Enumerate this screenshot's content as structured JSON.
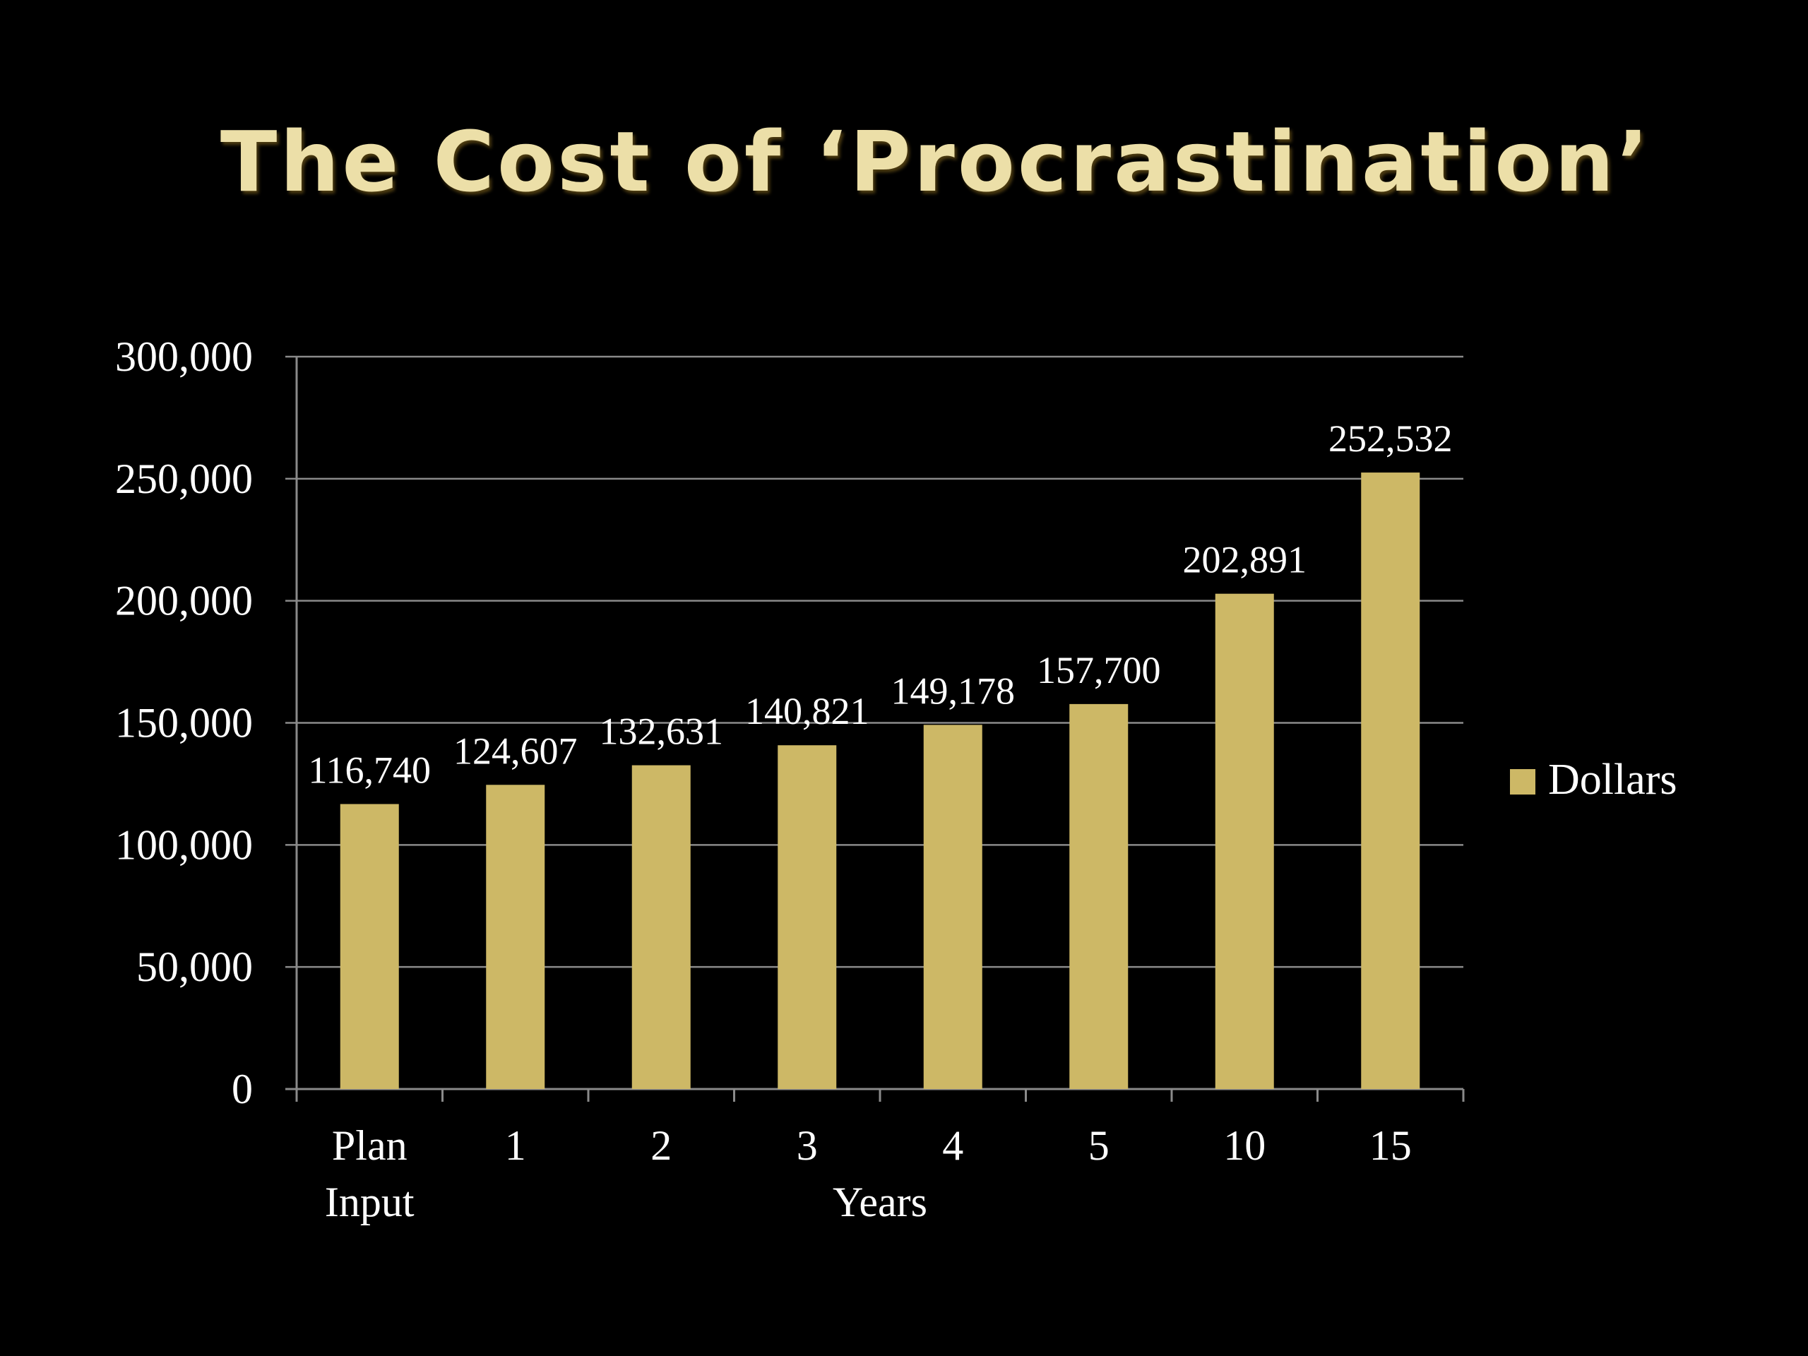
{
  "slide": {
    "title": "The Cost of ‘Procrastination’"
  },
  "colors": {
    "background": "#000000",
    "bar": "#cdb866",
    "gridline": "#8a8a8a",
    "text": "#ffffff",
    "title": "#ecdfa8"
  },
  "chart_data": {
    "type": "bar",
    "title": "",
    "xlabel": "Years",
    "ylabel": "",
    "categories": [
      [
        "Plan",
        "Input"
      ],
      [
        "1"
      ],
      [
        "2"
      ],
      [
        "3"
      ],
      [
        "4"
      ],
      [
        "5"
      ],
      [
        "10"
      ],
      [
        "15"
      ]
    ],
    "series": [
      {
        "name": "Dollars",
        "values": [
          116740,
          124607,
          132631,
          140821,
          149178,
          157700,
          202891,
          252532
        ],
        "data_labels": [
          "116,740",
          "124,607",
          "132,631",
          "140,821",
          "149,178",
          "157,700",
          "202,891",
          "252,532"
        ]
      }
    ],
    "ylim": [
      0,
      300000
    ],
    "yticks": [
      0,
      50000,
      100000,
      150000,
      200000,
      250000,
      300000
    ],
    "ytick_labels": [
      "0",
      "50,000",
      "100,000",
      "150,000",
      "200,000",
      "250,000",
      "300,000"
    ],
    "grid": true,
    "legend": "right"
  }
}
